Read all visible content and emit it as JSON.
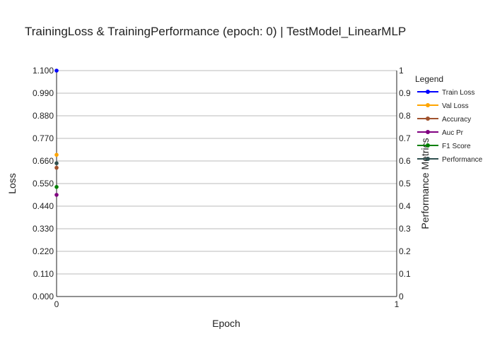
{
  "chart_data": {
    "type": "line",
    "title": "TrainingLoss & TrainingPerformance (epoch: 0) | TestModel_LinearMLP",
    "xlabel": "Epoch",
    "ylabel_left": "Loss",
    "ylabel_right": "Performance Metrics",
    "x_ticks": [
      "0",
      "1"
    ],
    "xlim": [
      0,
      1
    ],
    "ylim_left": [
      0,
      1.1
    ],
    "ylim_right": [
      0,
      1
    ],
    "y_ticks_left": [
      "0.000",
      "0.110",
      "0.220",
      "0.330",
      "0.440",
      "0.550",
      "0.660",
      "0.770",
      "0.880",
      "0.990",
      "1.100"
    ],
    "y_ticks_right": [
      "0",
      "0.1",
      "0.2",
      "0.3",
      "0.4",
      "0.5",
      "0.6",
      "0.7",
      "0.8",
      "0.9",
      "1"
    ],
    "grid": true,
    "legend_title": "Legend",
    "legend_position": "right",
    "series": [
      {
        "name": "Train Loss",
        "axis": "left",
        "color": "#0000ff",
        "x": [
          0
        ],
        "y": [
          1.1
        ]
      },
      {
        "name": "Val Loss",
        "axis": "left",
        "color": "#ffa500",
        "x": [
          0
        ],
        "y": [
          0.69
        ]
      },
      {
        "name": "Accuracy",
        "axis": "right",
        "color": "#a0522d",
        "x": [
          0
        ],
        "y": [
          0.57
        ]
      },
      {
        "name": "Auc Pr",
        "axis": "right",
        "color": "#800080",
        "x": [
          0
        ],
        "y": [
          0.45
        ]
      },
      {
        "name": "F1 Score",
        "axis": "right",
        "color": "#008000",
        "x": [
          0
        ],
        "y": [
          0.485
        ]
      },
      {
        "name": "Performance",
        "axis": "right",
        "color": "#2f4f4f",
        "x": [
          0
        ],
        "y": [
          0.59
        ]
      }
    ]
  }
}
